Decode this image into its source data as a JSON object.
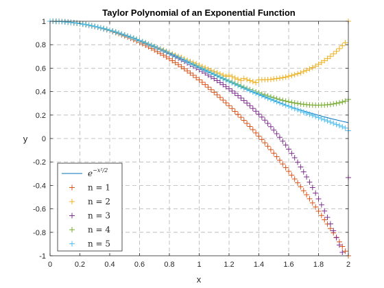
{
  "chart_data": {
    "type": "line",
    "title": "Taylor Polynomial of an Exponential Function",
    "xlabel": "x",
    "ylabel": "y",
    "xlim": [
      0,
      2
    ],
    "ylim": [
      -1,
      1
    ],
    "grid": true,
    "legend_location": "bottom-left",
    "x_ticks": [
      0,
      0.2,
      0.4,
      0.6,
      0.8,
      1,
      1.2,
      1.4,
      1.6,
      1.8,
      2
    ],
    "x_tick_labels": [
      "0",
      "0.2",
      "0.4",
      "0.6",
      "0.8",
      "1",
      "1.2",
      "1.4",
      "1.6",
      "1.8",
      "2"
    ],
    "y_ticks": [
      -1,
      -0.8,
      -0.6,
      -0.4,
      -0.2,
      0,
      0.2,
      0.4,
      0.6,
      0.8,
      1
    ],
    "y_tick_labels": [
      "-1",
      "-0.8",
      "-0.6",
      "-0.4",
      "-0.2",
      "0",
      "0.2",
      "0.4",
      "0.6",
      "0.8",
      "1"
    ],
    "x": [
      0,
      0.02,
      0.04,
      0.06,
      0.08,
      0.1,
      0.12,
      0.14,
      0.16,
      0.18,
      0.2,
      0.22,
      0.24,
      0.26,
      0.28,
      0.3,
      0.32,
      0.34,
      0.36,
      0.38,
      0.4,
      0.42,
      0.44,
      0.46,
      0.48,
      0.5,
      0.52,
      0.54,
      0.56,
      0.58,
      0.6,
      0.62,
      0.64,
      0.66,
      0.68,
      0.7,
      0.72,
      0.74,
      0.76,
      0.78,
      0.8,
      0.82,
      0.84,
      0.86,
      0.88,
      0.9,
      0.92,
      0.94,
      0.96,
      0.98,
      1,
      1.02,
      1.04,
      1.06,
      1.08,
      1.1,
      1.12,
      1.14,
      1.16,
      1.18,
      1.2,
      1.22,
      1.24,
      1.26,
      1.28,
      1.3,
      1.32,
      1.34,
      1.36,
      1.38,
      1.4,
      1.42,
      1.44,
      1.46,
      1.48,
      1.5,
      1.52,
      1.54,
      1.56,
      1.58,
      1.6,
      1.62,
      1.64,
      1.66,
      1.68,
      1.7,
      1.72,
      1.74,
      1.76,
      1.78,
      1.8,
      1.82,
      1.84,
      1.86,
      1.88,
      1.9,
      1.92,
      1.94,
      1.96,
      1.98,
      2
    ],
    "series": [
      {
        "name": "e^{-x^2/2}",
        "style": "line",
        "color": "#0072BD",
        "values": [
          1,
          0.9998,
          0.9992,
          0.9982,
          0.9968,
          0.995,
          0.9928,
          0.9902,
          0.9873,
          0.9839,
          0.9802,
          0.9761,
          0.9716,
          0.9668,
          0.9616,
          0.956,
          0.9501,
          0.9438,
          0.9372,
          0.9303,
          0.9231,
          0.9156,
          0.9077,
          0.8996,
          0.8912,
          0.8825,
          0.8735,
          0.8643,
          0.8549,
          0.8452,
          0.8353,
          0.8251,
          0.8148,
          0.8043,
          0.7936,
          0.7827,
          0.7717,
          0.7605,
          0.7492,
          0.7378,
          0.7261,
          0.7145,
          0.7027,
          0.6909,
          0.679,
          0.6669,
          0.6549,
          0.6428,
          0.6307,
          0.6186,
          0.6065,
          0.5944,
          0.5823,
          0.5702,
          0.5582,
          0.5461,
          0.5342,
          0.5223,
          0.5105,
          0.4987,
          0.4868,
          0.4753,
          0.4638,
          0.4524,
          0.441,
          0.4296,
          0.4185,
          0.4075,
          0.3966,
          0.3859,
          0.3753,
          0.3648,
          0.3546,
          0.3444,
          0.3345,
          0.3247,
          0.3149,
          0.3054,
          0.296,
          0.2869,
          0.2778,
          0.269,
          0.2605,
          0.2521,
          0.2438,
          0.2357,
          0.2277,
          0.2201,
          0.2126,
          0.2054,
          0.1979,
          0.1909,
          0.1842,
          0.1775,
          0.171,
          0.1646,
          0.1585,
          0.1525,
          0.1466,
          0.141,
          0.1353
        ]
      },
      {
        "name": "n = 1",
        "style": "markers",
        "marker": "+",
        "color": "#D95319",
        "values": [
          1,
          0.9998,
          0.9992,
          0.9982,
          0.9968,
          0.995,
          0.9928,
          0.9902,
          0.9872,
          0.9838,
          0.98,
          0.9758,
          0.9712,
          0.9662,
          0.9608,
          0.955,
          0.9488,
          0.9422,
          0.9352,
          0.9278,
          0.92,
          0.9118,
          0.9032,
          0.8942,
          0.8848,
          0.875,
          0.8648,
          0.8542,
          0.8432,
          0.8318,
          0.82,
          0.8078,
          0.7952,
          0.7822,
          0.7688,
          0.755,
          0.7408,
          0.7262,
          0.7112,
          0.6958,
          0.68,
          0.6638,
          0.6472,
          0.6302,
          0.6128,
          0.595,
          0.5768,
          0.5582,
          0.5392,
          0.5198,
          0.5,
          0.4798,
          0.4592,
          0.4382,
          0.4168,
          0.395,
          0.3728,
          0.3502,
          0.3272,
          0.3038,
          0.28,
          0.2558,
          0.2312,
          0.2062,
          0.1808,
          0.155,
          0.1288,
          0.1022,
          0.0752,
          0.0478,
          0.02,
          -0.0082,
          -0.0368,
          -0.0658,
          -0.0952,
          -0.125,
          -0.1552,
          -0.1858,
          -0.2168,
          -0.2482,
          -0.28,
          -0.3122,
          -0.3448,
          -0.3778,
          -0.4112,
          -0.445,
          -0.4792,
          -0.5138,
          -0.5488,
          -0.5842,
          -0.62,
          -0.6562,
          -0.6928,
          -0.7298,
          -0.7672,
          -0.805,
          -0.8432,
          -0.8818,
          -0.9208,
          -0.9602,
          -1
        ]
      },
      {
        "name": "n = 2",
        "style": "markers",
        "marker": "+",
        "color": "#EDB120",
        "values": [
          1,
          0.9998,
          0.9992,
          0.9982,
          0.9968,
          0.995,
          0.9928,
          0.9902,
          0.9873,
          0.9839,
          0.9802,
          0.9761,
          0.9716,
          0.9668,
          0.9616,
          0.956,
          0.9501,
          0.9439,
          0.9373,
          0.9304,
          0.9232,
          0.9157,
          0.9079,
          0.8998,
          0.8914,
          0.8828,
          0.874,
          0.865,
          0.8556,
          0.8462,
          0.8362,
          0.8262,
          0.8162,
          0.8062,
          0.7962,
          0.785,
          0.775,
          0.765,
          0.755,
          0.745,
          0.7312,
          0.7213,
          0.7114,
          0.7015,
          0.6916,
          0.6768,
          0.6669,
          0.657,
          0.6471,
          0.6372,
          0.625,
          0.6141,
          0.6032,
          0.5923,
          0.5814,
          0.5706,
          0.5604,
          0.5503,
          0.5402,
          0.5302,
          0.5392,
          0.5277,
          0.5162,
          0.5058,
          0.4955,
          0.5121,
          0.5029,
          0.494,
          0.4853,
          0.4769,
          0.5,
          0.5004,
          0.5011,
          0.5021,
          0.5035,
          0.5078,
          0.5111,
          0.5149,
          0.5191,
          0.5239,
          0.5312,
          0.5376,
          0.5446,
          0.5523,
          0.5608,
          0.5715,
          0.5817,
          0.5928,
          0.6049,
          0.618,
          0.6328,
          0.6481,
          0.6646,
          0.6823,
          0.7012,
          0.7215,
          0.7432,
          0.7663,
          0.7909,
          0.817,
          1
        ]
      },
      {
        "name": "n = 3",
        "style": "markers",
        "marker": "+",
        "color": "#7E2F8E",
        "values": [
          1,
          0.9998,
          0.9992,
          0.9982,
          0.9968,
          0.995,
          0.9928,
          0.9902,
          0.9873,
          0.9839,
          0.9802,
          0.9761,
          0.9716,
          0.9668,
          0.9616,
          0.956,
          0.9501,
          0.9438,
          0.9372,
          0.9303,
          0.9231,
          0.9156,
          0.9077,
          0.8996,
          0.8912,
          0.8824,
          0.8734,
          0.8642,
          0.8547,
          0.8449,
          0.8349,
          0.8247,
          0.8142,
          0.8035,
          0.7925,
          0.7814,
          0.77,
          0.7585,
          0.7467,
          0.7347,
          0.7225,
          0.7101,
          0.6975,
          0.6847,
          0.6716,
          0.6583,
          0.6448,
          0.631,
          0.617,
          0.6027,
          0.5882,
          0.5733,
          0.5582,
          0.5427,
          0.5269,
          0.5107,
          0.4942,
          0.4772,
          0.4598,
          0.442,
          0.4237,
          0.4049,
          0.3856,
          0.3657,
          0.3452,
          0.3241,
          0.3023,
          0.2799,
          0.2567,
          0.2328,
          0.2081,
          0.1826,
          0.1562,
          0.1289,
          0.1007,
          0.0715,
          0.0413,
          0.01,
          -0.0224,
          -0.0559,
          -0.0907,
          -0.1267,
          -0.1641,
          -0.2028,
          -0.2429,
          -0.2844,
          -0.3274,
          -0.3719,
          -0.4179,
          -0.4655,
          -0.5147,
          -0.5656,
          -0.6181,
          -0.6724,
          -0.7284,
          -0.7863,
          -0.846,
          -0.9076,
          -0.9711,
          -1.0366,
          -0.3333
        ]
      },
      {
        "name": "n = 4",
        "style": "markers",
        "marker": "+",
        "color": "#77AC30",
        "values": [
          1,
          0.9998,
          0.9992,
          0.9982,
          0.9968,
          0.995,
          0.9928,
          0.9902,
          0.9873,
          0.9839,
          0.9802,
          0.9761,
          0.9716,
          0.9668,
          0.9616,
          0.956,
          0.9501,
          0.9438,
          0.9372,
          0.9303,
          0.9231,
          0.9156,
          0.9077,
          0.8996,
          0.8912,
          0.8825,
          0.8735,
          0.8643,
          0.8549,
          0.8452,
          0.8353,
          0.8251,
          0.8148,
          0.8043,
          0.7936,
          0.7827,
          0.7717,
          0.7605,
          0.7492,
          0.7378,
          0.7262,
          0.7146,
          0.7028,
          0.691,
          0.6791,
          0.6672,
          0.6552,
          0.6432,
          0.6312,
          0.6192,
          0.6073,
          0.5953,
          0.5834,
          0.5716,
          0.5598,
          0.5481,
          0.5364,
          0.5249,
          0.5135,
          0.5021,
          0.4909,
          0.4799,
          0.469,
          0.4582,
          0.4477,
          0.4373,
          0.4271,
          0.4172,
          0.4075,
          0.398,
          0.3887,
          0.3797,
          0.371,
          0.3626,
          0.3545,
          0.3467,
          0.3393,
          0.3322,
          0.3255,
          0.3193,
          0.3134,
          0.308,
          0.3031,
          0.2987,
          0.2948,
          0.2915,
          0.2888,
          0.2867,
          0.2852,
          0.2843,
          0.2842,
          0.2848,
          0.2861,
          0.2882,
          0.2911,
          0.2949,
          0.2995,
          0.3051,
          0.3116,
          0.3191,
          0.3333
        ]
      },
      {
        "name": "n = 5",
        "style": "markers",
        "marker": "+",
        "color": "#4DBEEE",
        "values": [
          1,
          0.9998,
          0.9992,
          0.9982,
          0.9968,
          0.995,
          0.9928,
          0.9902,
          0.9873,
          0.9839,
          0.9802,
          0.9761,
          0.9716,
          0.9668,
          0.9616,
          0.956,
          0.9501,
          0.9438,
          0.9372,
          0.9303,
          0.9231,
          0.9156,
          0.9077,
          0.8996,
          0.8912,
          0.8825,
          0.8735,
          0.8643,
          0.8549,
          0.8452,
          0.8353,
          0.8251,
          0.8148,
          0.8043,
          0.7936,
          0.7827,
          0.7717,
          0.7605,
          0.7492,
          0.7378,
          0.7261,
          0.7145,
          0.7027,
          0.6909,
          0.679,
          0.6669,
          0.6549,
          0.6428,
          0.6307,
          0.6186,
          0.6065,
          0.5944,
          0.5823,
          0.5702,
          0.5582,
          0.5461,
          0.5342,
          0.5223,
          0.5105,
          0.4987,
          0.487,
          0.4754,
          0.4639,
          0.4525,
          0.4412,
          0.4299,
          0.4188,
          0.4078,
          0.3969,
          0.3861,
          0.3754,
          0.3648,
          0.3543,
          0.3439,
          0.3337,
          0.3235,
          0.3134,
          0.3034,
          0.2935,
          0.2837,
          0.2739,
          0.2642,
          0.2546,
          0.245,
          0.2354,
          0.2259,
          0.2164,
          0.2069,
          0.1975,
          0.188,
          0.1784,
          0.1689,
          0.1593,
          0.1496,
          0.1399,
          0.13,
          0.1201,
          0.1101,
          0.0999,
          0.0895,
          0.0667
        ]
      }
    ]
  }
}
